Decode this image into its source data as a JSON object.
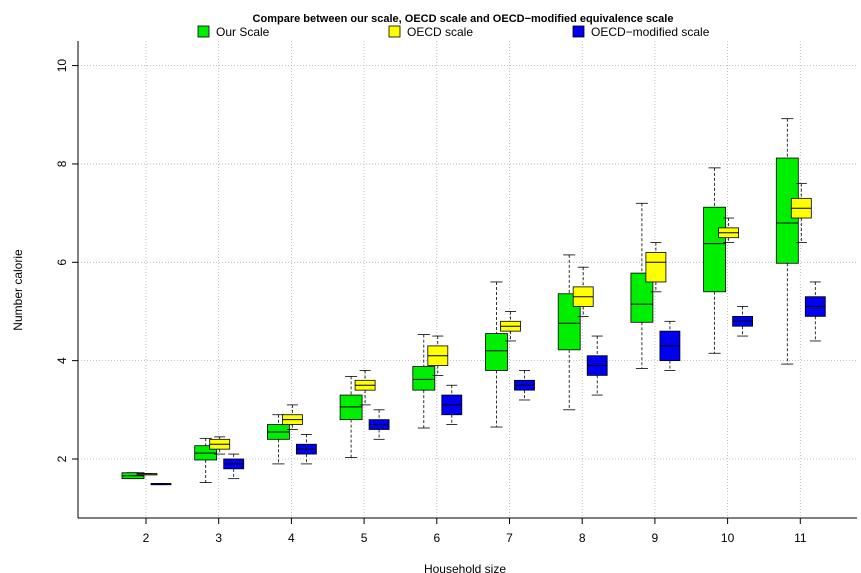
{
  "chart_data": {
    "type": "boxplot",
    "title": "Compare between our scale,  OECD scale and OECD−modified equivalence scale",
    "xlabel": "Household size",
    "ylabel": "Number calorie",
    "categories": [
      "2",
      "3",
      "4",
      "5",
      "6",
      "7",
      "8",
      "9",
      "10",
      "11"
    ],
    "yticks": [
      "2",
      "4",
      "6",
      "8",
      "10"
    ],
    "ylim": [
      0.8,
      10.5
    ],
    "grid": true,
    "legend_position": "top",
    "series": [
      {
        "name": "Our Scale",
        "color": "#00ee00",
        "boxes": [
          {
            "min": 1.6,
            "q1": 1.6,
            "median": 1.66,
            "q3": 1.72,
            "max": 1.72
          },
          {
            "min": 1.52,
            "q1": 1.98,
            "median": 2.12,
            "q3": 2.27,
            "max": 2.42
          },
          {
            "min": 1.9,
            "q1": 2.4,
            "median": 2.55,
            "q3": 2.7,
            "max": 2.9
          },
          {
            "min": 2.03,
            "q1": 2.8,
            "median": 3.06,
            "q3": 3.3,
            "max": 3.68
          },
          {
            "min": 2.63,
            "q1": 3.4,
            "median": 3.62,
            "q3": 3.88,
            "max": 4.53
          },
          {
            "min": 2.65,
            "q1": 3.8,
            "median": 4.2,
            "q3": 4.55,
            "max": 5.6
          },
          {
            "min": 3.0,
            "q1": 4.22,
            "median": 4.76,
            "q3": 5.36,
            "max": 6.15
          },
          {
            "min": 3.84,
            "q1": 4.78,
            "median": 5.15,
            "q3": 5.78,
            "max": 7.2
          },
          {
            "min": 4.15,
            "q1": 5.4,
            "median": 6.38,
            "q3": 7.12,
            "max": 7.92
          },
          {
            "min": 3.93,
            "q1": 5.98,
            "median": 6.8,
            "q3": 8.12,
            "max": 8.92
          }
        ]
      },
      {
        "name": "OECD scale",
        "color": "#ffff00",
        "boxes": [
          {
            "min": 1.7,
            "q1": 1.7,
            "median": 1.7,
            "q3": 1.7,
            "max": 1.7
          },
          {
            "min": 2.1,
            "q1": 2.2,
            "median": 2.3,
            "q3": 2.4,
            "max": 2.45
          },
          {
            "min": 2.6,
            "q1": 2.7,
            "median": 2.8,
            "q3": 2.9,
            "max": 3.1
          },
          {
            "min": 3.1,
            "q1": 3.4,
            "median": 3.5,
            "q3": 3.6,
            "max": 3.8
          },
          {
            "min": 3.7,
            "q1": 3.9,
            "median": 4.1,
            "q3": 4.3,
            "max": 4.5
          },
          {
            "min": 4.4,
            "q1": 4.6,
            "median": 4.7,
            "q3": 4.8,
            "max": 5.0
          },
          {
            "min": 4.9,
            "q1": 5.1,
            "median": 5.3,
            "q3": 5.5,
            "max": 5.9
          },
          {
            "min": 5.4,
            "q1": 5.6,
            "median": 6.0,
            "q3": 6.2,
            "max": 6.4
          },
          {
            "min": 6.4,
            "q1": 6.5,
            "median": 6.6,
            "q3": 6.7,
            "max": 6.9
          },
          {
            "min": 6.4,
            "q1": 6.9,
            "median": 7.1,
            "q3": 7.3,
            "max": 7.6
          }
        ]
      },
      {
        "name": "OECD−modified scale",
        "color": "#0000ee",
        "boxes": [
          {
            "min": 1.5,
            "q1": 1.5,
            "median": 1.5,
            "q3": 1.5,
            "max": 1.5
          },
          {
            "min": 1.6,
            "q1": 1.8,
            "median": 1.9,
            "q3": 2.0,
            "max": 2.1
          },
          {
            "min": 1.9,
            "q1": 2.1,
            "median": 2.2,
            "q3": 2.3,
            "max": 2.5
          },
          {
            "min": 2.4,
            "q1": 2.6,
            "median": 2.7,
            "q3": 2.8,
            "max": 3.0
          },
          {
            "min": 2.7,
            "q1": 2.9,
            "median": 3.1,
            "q3": 3.3,
            "max": 3.5
          },
          {
            "min": 3.2,
            "q1": 3.4,
            "median": 3.5,
            "q3": 3.6,
            "max": 3.8
          },
          {
            "min": 3.3,
            "q1": 3.7,
            "median": 3.9,
            "q3": 4.1,
            "max": 4.5
          },
          {
            "min": 3.8,
            "q1": 4.0,
            "median": 4.3,
            "q3": 4.6,
            "max": 4.8
          },
          {
            "min": 4.5,
            "q1": 4.7,
            "median": 4.8,
            "q3": 4.9,
            "max": 5.1
          },
          {
            "min": 4.4,
            "q1": 4.9,
            "median": 5.1,
            "q3": 5.3,
            "max": 5.6
          }
        ]
      }
    ]
  }
}
